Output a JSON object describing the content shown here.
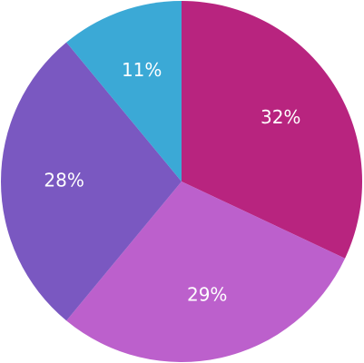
{
  "chart_data": {
    "type": "pie",
    "values": [
      32,
      29,
      28,
      11
    ],
    "value_labels": [
      "32%",
      "29%",
      "28%",
      "11%"
    ],
    "colors": [
      "#b8247f",
      "#bc60cc",
      "#7a58c1",
      "#3ba9d6"
    ]
  }
}
